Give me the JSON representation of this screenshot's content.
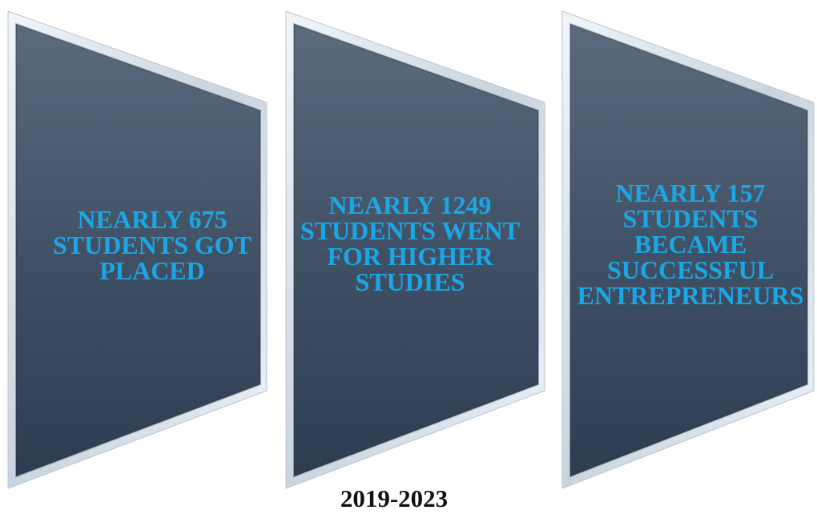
{
  "cards": [
    {
      "text": "NEARLY 675\nSTUDENTS GOT\nPLACED"
    },
    {
      "text": "NEARLY 1249\nSTUDENTS WENT\nFOR HIGHER\nSTUDIES"
    },
    {
      "text": "NEARLY 157\nSTUDENTS\nBECAME\nSUCCESSFUL\nENTREPRENEURS"
    }
  ],
  "period": "2019-2023",
  "colors": {
    "card_fill_top": "#5a6a7d",
    "card_fill_bottom": "#2f3e52",
    "card_bevel": "#d7e1ea",
    "text": "#1aa7e8"
  }
}
